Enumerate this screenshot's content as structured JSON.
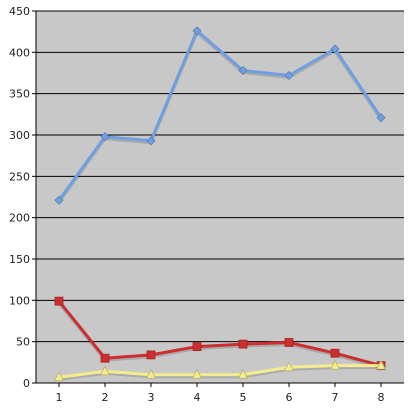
{
  "chart_data": {
    "type": "line",
    "title": "",
    "xlabel": "",
    "ylabel": "",
    "x": [
      1,
      2,
      3,
      4,
      5,
      6,
      7,
      8
    ],
    "ylim": [
      0,
      450
    ],
    "yticks": [
      0,
      50,
      100,
      150,
      200,
      250,
      300,
      350,
      400,
      450
    ],
    "grid": "horizontal",
    "legend": "none",
    "plot_background": "#c8c8c8",
    "series": [
      {
        "values": [
          221,
          298,
          293,
          426,
          378,
          372,
          404,
          321
        ],
        "color": "#6f9fe0",
        "marker": "diamond"
      },
      {
        "values": [
          99,
          30,
          34,
          44,
          47,
          49,
          36,
          21
        ],
        "color": "#cc2f2f",
        "marker": "square"
      },
      {
        "values": [
          7,
          14,
          10,
          10,
          10,
          19,
          21,
          21
        ],
        "color": "#f5ec90",
        "marker": "triangle"
      }
    ]
  }
}
